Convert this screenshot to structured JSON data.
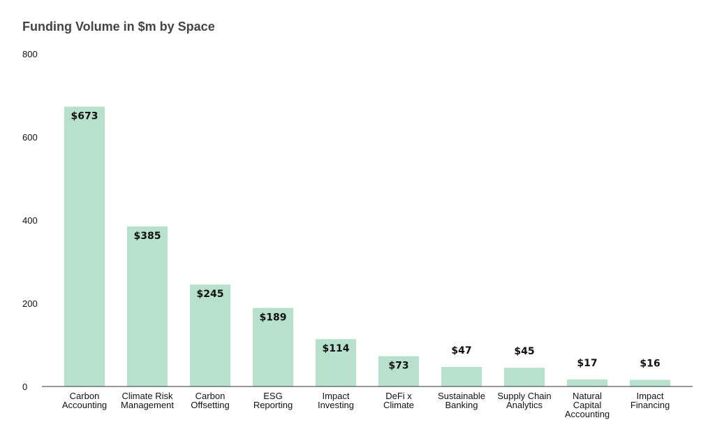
{
  "chart_data": {
    "type": "bar",
    "title": "Funding Volume in $m by Space",
    "xlabel": "",
    "ylabel": "",
    "ylim": [
      0,
      800
    ],
    "yticks": [
      "0",
      "200",
      "400",
      "600",
      "800"
    ],
    "grid": false,
    "bar_color": "#b7e1cd",
    "categories": [
      "Carbon Accounting",
      "Climate Risk Management",
      "Carbon Offsetting",
      "ESG Reporting",
      "Impact Investing",
      "DeFi x Climate",
      "Sustainable Banking",
      "Supply Chain Analytics",
      "Natural Capital Accounting",
      "Impact Financing"
    ],
    "category_lines": [
      [
        "Carbon",
        "Accounting"
      ],
      [
        "Climate Risk",
        "Management"
      ],
      [
        "Carbon",
        "Offsetting"
      ],
      [
        "ESG",
        "Reporting"
      ],
      [
        "Impact",
        "Investing"
      ],
      [
        "DeFi x",
        "Climate"
      ],
      [
        "Sustainable",
        "Banking"
      ],
      [
        "Supply Chain",
        "Analytics"
      ],
      [
        "Natural",
        "Capital",
        "Accounting"
      ],
      [
        "Impact",
        "Financing"
      ]
    ],
    "values": [
      673,
      385,
      245,
      189,
      114,
      73,
      47,
      45,
      17,
      16
    ],
    "data_labels": [
      "$673",
      "$385",
      "$245",
      "$189",
      "$114",
      "$73",
      "$47",
      "$45",
      "$17",
      "$16"
    ]
  }
}
